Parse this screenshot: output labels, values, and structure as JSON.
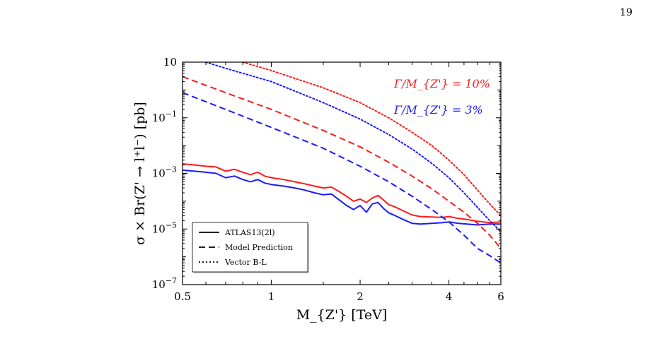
{
  "page": {
    "number": "19"
  },
  "chart_data": {
    "type": "line",
    "xlabel": "M_{Z'} [TeV]",
    "ylabel": "σ × Br(Z' → l⁺l⁻) [pb]",
    "x_scale": "log",
    "y_scale": "log",
    "xlim": [
      0.5,
      6
    ],
    "ylim": [
      1e-07,
      10
    ],
    "x_ticks": [
      0.5,
      1,
      2,
      4,
      6
    ],
    "x_tick_labels": [
      "0.5",
      "1",
      "2",
      "4",
      "6"
    ],
    "y_ticks": [
      1e-07,
      1e-05,
      0.001,
      0.1,
      10
    ],
    "y_tick_labels": [
      "10",
      "10",
      "10",
      "10",
      "10"
    ],
    "y_tick_exponents": [
      "−7",
      "−5",
      "−3",
      "−1",
      ""
    ],
    "grid": false,
    "legend_position": "bottom-left",
    "legend": [
      {
        "label": "ATLAS13(2l)",
        "style": "solid"
      },
      {
        "label": "Model Prediction",
        "style": "dashed"
      },
      {
        "label": "Vector B-L",
        "style": "dotted"
      }
    ],
    "annotations": [
      {
        "text": "Γ/M_{Z'} = 10%",
        "color": "#ff1a1a"
      },
      {
        "text": "Γ/M_{Z'} = 3%",
        "color": "#1a1aff"
      }
    ],
    "series": [
      {
        "group": "Γ/M_{Z'} = 10%",
        "style": "solid",
        "color": "#ff1a1a",
        "x": [
          0.5,
          0.55,
          0.6,
          0.65,
          0.7,
          0.75,
          0.8,
          0.85,
          0.9,
          0.95,
          1.0,
          1.1,
          1.2,
          1.3,
          1.4,
          1.5,
          1.6,
          1.7,
          1.8,
          1.9,
          2.0,
          2.1,
          2.2,
          2.3,
          2.4,
          2.5,
          2.6,
          2.8,
          3.0,
          3.2,
          3.5,
          3.8,
          4.0,
          4.3,
          4.6,
          5.0,
          5.5,
          6.0
        ],
        "y": [
          0.0022,
          0.002,
          0.0018,
          0.0017,
          0.0012,
          0.0014,
          0.0011,
          0.0009,
          0.0011,
          0.0008,
          0.0007,
          0.0006,
          0.0005,
          0.00042,
          0.00035,
          0.0003,
          0.00032,
          0.00022,
          0.00015,
          0.0001,
          0.00012,
          9e-05,
          0.00013,
          0.00016,
          0.00011,
          7.5e-05,
          6.5e-05,
          4.5e-05,
          3.2e-05,
          2.8e-05,
          2.7e-05,
          2.6e-05,
          2.8e-05,
          2.4e-05,
          2.2e-05,
          1.9e-05,
          1.7e-05,
          1.8e-05
        ]
      },
      {
        "group": "Γ/M_{Z'} = 3%",
        "style": "solid",
        "color": "#1a1aff",
        "x": [
          0.5,
          0.55,
          0.6,
          0.65,
          0.7,
          0.75,
          0.8,
          0.85,
          0.9,
          0.95,
          1.0,
          1.1,
          1.2,
          1.3,
          1.4,
          1.5,
          1.6,
          1.7,
          1.8,
          1.9,
          2.0,
          2.1,
          2.2,
          2.3,
          2.4,
          2.5,
          2.6,
          2.8,
          3.0,
          3.2,
          3.5,
          3.8,
          4.0,
          4.3,
          4.6,
          5.0,
          5.5,
          6.0
        ],
        "y": [
          0.0013,
          0.0012,
          0.0011,
          0.001,
          0.0007,
          0.0008,
          0.0006,
          0.0005,
          0.0006,
          0.00045,
          0.0004,
          0.00035,
          0.0003,
          0.00025,
          0.0002,
          0.00017,
          0.00018,
          0.00011,
          7e-05,
          5e-05,
          7e-05,
          4e-05,
          8e-05,
          9e-05,
          5.5e-05,
          3.8e-05,
          3.2e-05,
          2.2e-05,
          1.6e-05,
          1.5e-05,
          1.6e-05,
          1.7e-05,
          1.8e-05,
          1.6e-05,
          1.5e-05,
          1.4e-05,
          1.5e-05,
          1.5e-05
        ]
      },
      {
        "group": "Γ/M_{Z'} = 10%",
        "style": "dashed",
        "color": "#ff1a1a",
        "x": [
          0.5,
          0.7,
          1.0,
          1.5,
          2.0,
          2.5,
          3.0,
          3.5,
          4.0,
          4.5,
          5.0,
          5.5,
          6.0
        ],
        "y": [
          3.0,
          0.8,
          0.2,
          0.035,
          0.009,
          0.0025,
          0.0008,
          0.00028,
          0.0001,
          4e-05,
          1.6e-05,
          6e-06,
          2e-06
        ]
      },
      {
        "group": "Γ/M_{Z'} = 3%",
        "style": "dashed",
        "color": "#1a1aff",
        "x": [
          0.5,
          0.7,
          1.0,
          1.5,
          2.0,
          2.5,
          3.0,
          3.5,
          4.0,
          4.5,
          5.0,
          5.5,
          6.0
        ],
        "y": [
          0.8,
          0.2,
          0.045,
          0.008,
          0.0018,
          0.0005,
          0.00015,
          5e-05,
          1.8e-05,
          6e-06,
          2e-06,
          1.1e-06,
          6e-07
        ]
      },
      {
        "group": "Γ/M_{Z'} = 10%",
        "style": "dotted",
        "color": "#ff1a1a",
        "x": [
          0.8,
          1.0,
          1.5,
          2.0,
          2.5,
          3.0,
          3.5,
          4.0,
          4.5,
          5.0,
          5.5,
          6.0
        ],
        "y": [
          10.0,
          5.0,
          1.2,
          0.35,
          0.1,
          0.03,
          0.01,
          0.003,
          0.0009,
          0.00025,
          8e-05,
          3e-05
        ]
      },
      {
        "group": "Γ/M_{Z'} = 3%",
        "style": "dotted",
        "color": "#1a1aff",
        "x": [
          0.6,
          0.7,
          1.0,
          1.5,
          2.0,
          2.5,
          3.0,
          3.5,
          4.0,
          4.5,
          5.0,
          5.5,
          6.0
        ],
        "y": [
          10.0,
          6.0,
          2.0,
          0.35,
          0.09,
          0.025,
          0.0075,
          0.0023,
          0.0007,
          0.0002,
          6e-05,
          2e-05,
          8e-06
        ]
      }
    ]
  }
}
